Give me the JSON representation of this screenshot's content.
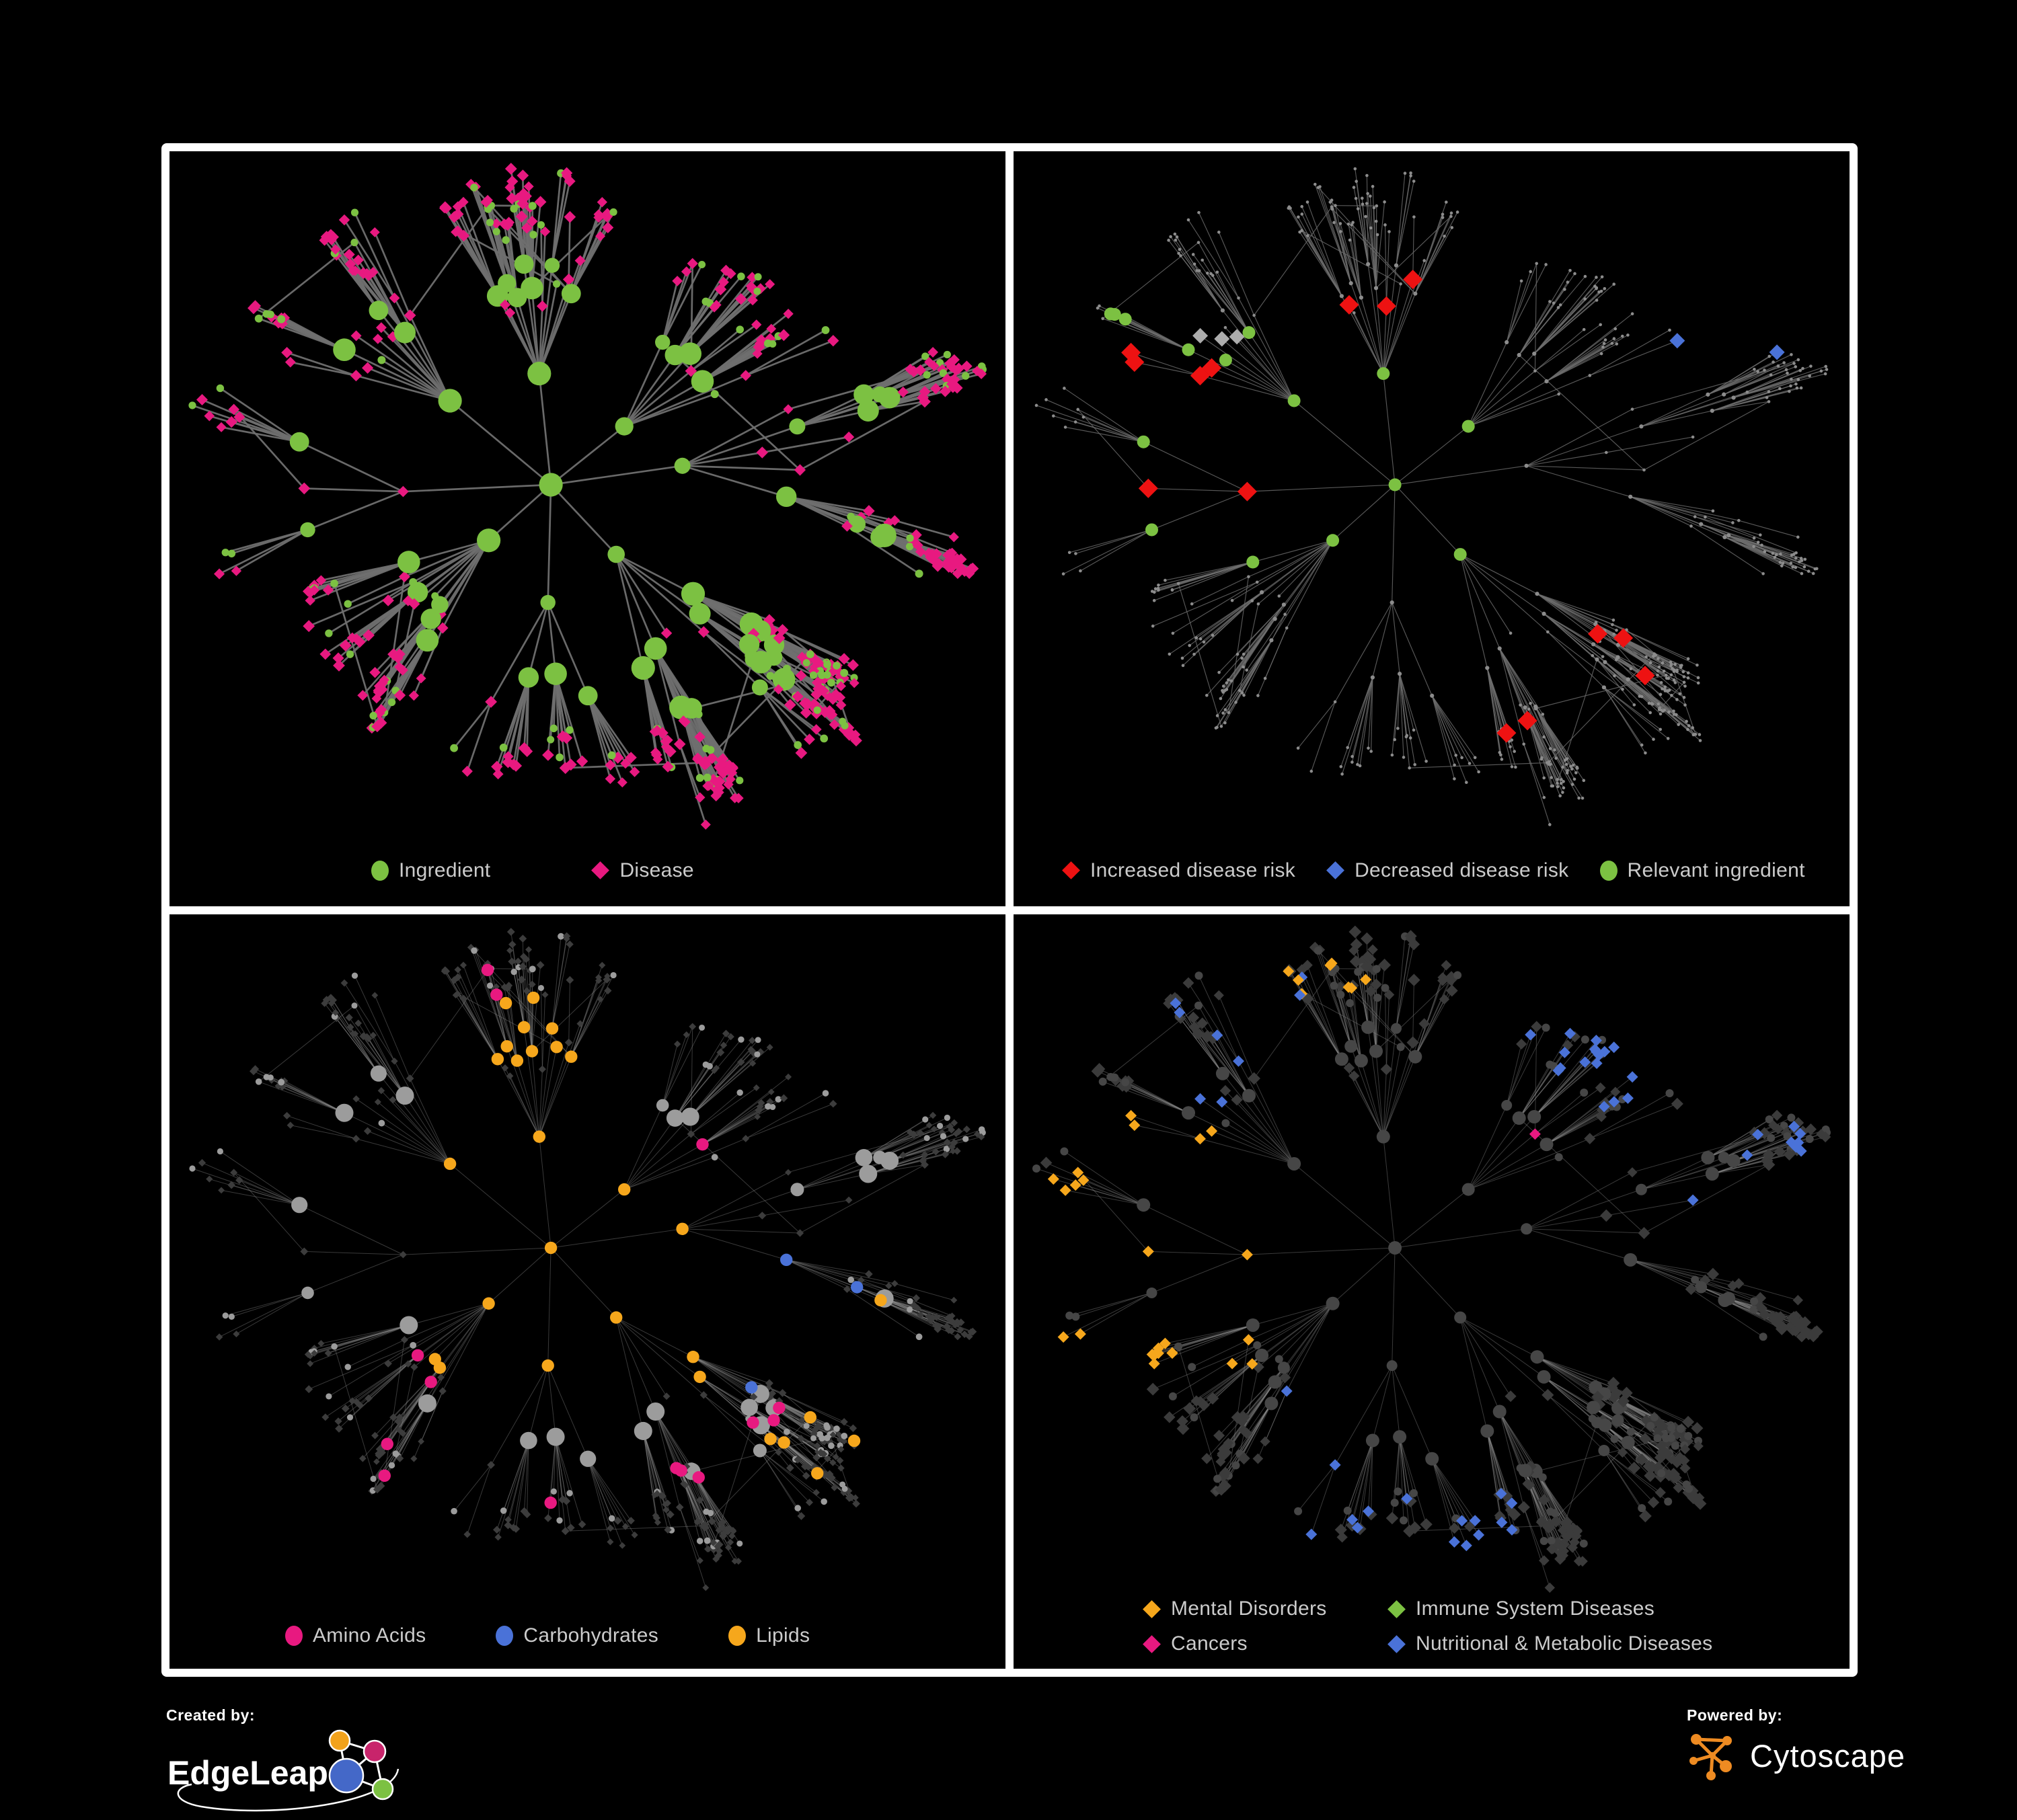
{
  "page": {
    "background": "#000000",
    "frame_color": "#ffffff",
    "legend_text_color": "#cbcbcb"
  },
  "figure": {
    "kind": "network-comparison-poster",
    "rows": 2,
    "cols": 2
  },
  "palette": {
    "green": "#7CC142",
    "magenta": "#E81980",
    "red": "#EE1212",
    "blue": "#4A72D8",
    "orange": "#F6A71C",
    "gray_highlight": "#ACACAC"
  },
  "graph": {
    "seed": 7,
    "node_target": 560,
    "root_branches": 8,
    "extra_edges": 24
  },
  "panels": [
    {
      "id": "ingredient-disease",
      "mode": "colored",
      "legend": [
        {
          "shape": "ellipse",
          "color": "#7CC142",
          "label": "Ingredient"
        },
        {
          "shape": "diamond",
          "color": "#E81980",
          "label": "Disease"
        }
      ],
      "style": {
        "edge": {
          "color": "#6F6F6F",
          "width": 2.7,
          "opacity": 0.95
        },
        "circle_color": "#7CC142",
        "diamond_color": "#E81980"
      },
      "highlights": []
    },
    {
      "id": "disease-risk",
      "mode": "dots",
      "legend": [
        {
          "shape": "diamond",
          "color": "#EE1212",
          "label": "Increased disease risk"
        },
        {
          "shape": "diamond",
          "color": "#4A72D8",
          "label": "Decreased disease risk"
        },
        {
          "shape": "ellipse",
          "color": "#7CC142",
          "label": "Relevant ingredient"
        }
      ],
      "style": {
        "edge": {
          "color": "#6E6E6E",
          "width": 1.15,
          "opacity": 0.8
        },
        "dot_color": "#8C8C8C"
      },
      "highlights": [
        {
          "target": "diamond",
          "shape": "diamond",
          "color": "#EE1212",
          "size": 14.5,
          "count": 20,
          "region": [
            0.1,
            0.28,
            0.6,
            0.62
          ]
        },
        {
          "target": "diamond",
          "shape": "diamond",
          "color": "#EE1212",
          "size": 14.5,
          "count": 5,
          "region": [
            0.48,
            0.62,
            0.78,
            0.88
          ]
        },
        {
          "target": "diamond",
          "shape": "diamond",
          "color": "#EE1212",
          "size": 14.5,
          "count": 3,
          "region": [
            0.3,
            0.15,
            0.55,
            0.3
          ]
        },
        {
          "target": "diamond",
          "shape": "diamond",
          "color": "#ACACAC",
          "size": 11.5,
          "count": 7,
          "region": [
            0.08,
            0.25,
            0.55,
            0.6
          ]
        },
        {
          "target": "diamond",
          "shape": "diamond",
          "color": "#4A72D8",
          "size": 11.5,
          "count": 4,
          "region": [
            0.08,
            0.3,
            0.28,
            0.55
          ]
        },
        {
          "target": "diamond",
          "shape": "diamond",
          "color": "#4A72D8",
          "size": 11.5,
          "count": 2,
          "region": [
            0.8,
            0.12,
            0.97,
            0.28
          ]
        },
        {
          "target": "circle",
          "shape": "circle",
          "color": "#7CC142",
          "size": 9.5,
          "count": 15,
          "region": [
            0.06,
            0.22,
            0.55,
            0.62
          ]
        }
      ]
    },
    {
      "id": "nutrient-classes",
      "mode": "grayscale",
      "legend": [
        {
          "shape": "ellipse",
          "color": "#E81980",
          "label": "Amino Acids"
        },
        {
          "shape": "ellipse",
          "color": "#4A72D8",
          "label": "Carbohydrates"
        },
        {
          "shape": "ellipse",
          "color": "#F6A71C",
          "label": "Lipids"
        }
      ],
      "style": {
        "edge": {
          "color": "#8F8F8F",
          "width": 1.0,
          "opacity": 0.4
        },
        "circle_color": "#9C9C9C",
        "diamond_color": "#3C3C3C"
      },
      "highlights": [
        {
          "target": "circle",
          "shape": "circle",
          "color": "#F6A71C",
          "size": 9.2,
          "count": 30,
          "region": [
            0.28,
            0.1,
            0.58,
            0.38
          ]
        },
        {
          "target": "circle",
          "shape": "circle",
          "color": "#F6A71C",
          "size": 9.2,
          "count": 16,
          "region": [
            0.3,
            0.38,
            0.72,
            0.68
          ]
        },
        {
          "target": "circle",
          "shape": "circle",
          "color": "#F6A71C",
          "size": 9.2,
          "count": 6,
          "region": [
            0.55,
            0.55,
            0.9,
            0.85
          ]
        },
        {
          "target": "circle",
          "shape": "circle",
          "color": "#4A72D8",
          "size": 9.2,
          "count": 8,
          "region": [
            0.3,
            0.1,
            0.55,
            0.34
          ]
        },
        {
          "target": "circle",
          "shape": "circle",
          "color": "#4A72D8",
          "size": 9.2,
          "count": 3,
          "region": [
            0.55,
            0.45,
            0.85,
            0.7
          ]
        },
        {
          "target": "circle",
          "shape": "circle",
          "color": "#E81980",
          "size": 9.2,
          "count": 12,
          "region": [
            0.05,
            0.3,
            0.75,
            0.95
          ]
        },
        {
          "target": "circle",
          "shape": "circle",
          "color": "#E81980",
          "size": 9.2,
          "count": 2,
          "region": [
            0.35,
            0.02,
            0.65,
            0.15
          ]
        }
      ]
    },
    {
      "id": "disease-classes",
      "mode": "dark",
      "legend": [
        {
          "shape": "diamond",
          "color": "#F6A71C",
          "label": "Mental Disorders"
        },
        {
          "shape": "diamond",
          "color": "#7CC142",
          "label": "Immune System Diseases"
        },
        {
          "shape": "diamond",
          "color": "#E81980",
          "label": "Cancers"
        },
        {
          "shape": "diamond",
          "color": "#4A72D8",
          "label": "Nutritional & Metabolic Diseases"
        }
      ],
      "style": {
        "edge": {
          "color": "#8A8A8A",
          "width": 1.0,
          "opacity": 0.42
        },
        "circle_color": "#464646",
        "diamond_color": "#3B3B3B"
      },
      "highlights": [
        {
          "target": "diamond",
          "shape": "diamond",
          "color": "#F6A71C",
          "size": 8.5,
          "count": 70,
          "region": [
            0.02,
            0.28,
            0.36,
            0.66
          ]
        },
        {
          "target": "diamond",
          "shape": "diamond",
          "color": "#F6A71C",
          "size": 8.5,
          "count": 8,
          "region": [
            0.25,
            0.04,
            0.5,
            0.2
          ]
        },
        {
          "target": "diamond",
          "shape": "diamond",
          "color": "#E81980",
          "size": 8.5,
          "count": 40,
          "region": [
            0.4,
            0.3,
            0.7,
            0.64
          ]
        },
        {
          "target": "diamond",
          "shape": "diamond",
          "color": "#E81980",
          "size": 8.5,
          "count": 7,
          "region": [
            0.78,
            0.1,
            0.96,
            0.24
          ]
        },
        {
          "target": "diamond",
          "shape": "diamond",
          "color": "#4A72D8",
          "size": 8.5,
          "count": 26,
          "region": [
            0.55,
            0.02,
            0.99,
            0.52
          ]
        },
        {
          "target": "diamond",
          "shape": "diamond",
          "color": "#4A72D8",
          "size": 8.5,
          "count": 16,
          "region": [
            0.28,
            0.62,
            0.62,
            0.95
          ]
        },
        {
          "target": "diamond",
          "shape": "diamond",
          "color": "#4A72D8",
          "size": 8.5,
          "count": 8,
          "region": [
            0.02,
            0.02,
            0.35,
            0.28
          ]
        },
        {
          "target": "diamond",
          "shape": "diamond",
          "color": "#7CC142",
          "size": 8.5,
          "count": 7,
          "region": [
            0.38,
            0.28,
            0.62,
            0.58
          ]
        }
      ]
    }
  ],
  "footer": {
    "created_by": {
      "caption": "Created by:",
      "brand": "EdgeLeap"
    },
    "powered_by": {
      "caption": "Powered by:",
      "brand": "Cytoscape"
    }
  }
}
